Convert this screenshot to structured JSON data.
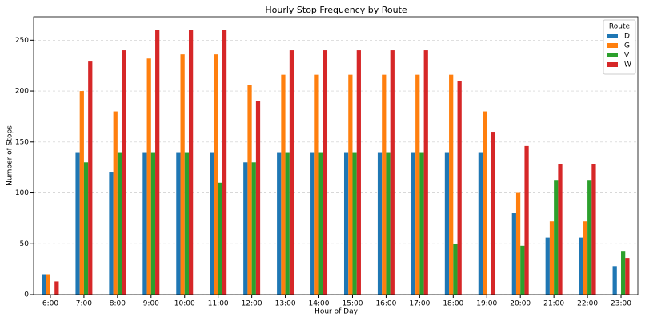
{
  "chart_data": {
    "type": "bar",
    "title": "Hourly Stop Frequency by Route",
    "x_label": "Hour of Day",
    "y_label": "Number of Stops",
    "categories": [
      "6:00",
      "7:00",
      "8:00",
      "9:00",
      "10:00",
      "11:00",
      "12:00",
      "13:00",
      "14:00",
      "15:00",
      "16:00",
      "17:00",
      "18:00",
      "19:00",
      "20:00",
      "21:00",
      "22:00",
      "23:00"
    ],
    "series": [
      {
        "name": "D",
        "color": "#1f77b4",
        "values": [
          20,
          140,
          120,
          140,
          140,
          140,
          130,
          140,
          140,
          140,
          140,
          140,
          140,
          140,
          80,
          56,
          56,
          28
        ]
      },
      {
        "name": "G",
        "color": "#ff7f0e",
        "values": [
          20,
          200,
          180,
          232,
          236,
          236,
          206,
          216,
          216,
          216,
          216,
          216,
          216,
          180,
          100,
          72,
          72,
          0
        ]
      },
      {
        "name": "V",
        "color": "#2ca02c",
        "values": [
          0,
          130,
          140,
          140,
          140,
          110,
          130,
          140,
          140,
          140,
          140,
          140,
          50,
          0,
          48,
          112,
          112,
          43
        ]
      },
      {
        "name": "W",
        "color": "#d62728",
        "values": [
          13,
          229,
          240,
          260,
          260,
          260,
          190,
          240,
          240,
          240,
          240,
          240,
          210,
          160,
          146,
          128,
          128,
          36
        ]
      }
    ],
    "legend_title": "Route",
    "legend": "upper right",
    "ylim": [
      0,
      273
    ],
    "yticks": [
      0,
      50,
      100,
      150,
      200,
      250
    ],
    "grid": true
  }
}
